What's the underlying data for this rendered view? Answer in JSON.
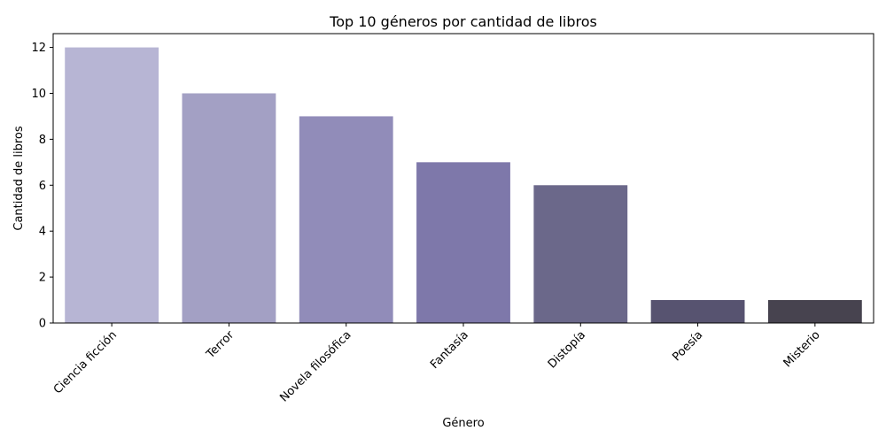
{
  "chart_data": {
    "type": "bar",
    "title": "Top 10 géneros por cantidad de libros",
    "xlabel": "Género",
    "ylabel": "Cantidad de libros",
    "categories": [
      "Ciencia ficción",
      "Terror",
      "Novela filosófica",
      "Fantasía",
      "Distopía",
      "Poesía",
      "Misterio"
    ],
    "values": [
      12,
      10,
      9,
      7,
      6,
      1,
      1
    ],
    "colors": [
      "#b7b5d4",
      "#a3a0c4",
      "#918cb9",
      "#7e78aa",
      "#6b688a",
      "#575370",
      "#47434f"
    ],
    "ylim": [
      0,
      12.6
    ],
    "yticks": [
      0,
      2,
      4,
      6,
      8,
      10,
      12
    ],
    "grid": false,
    "legend": "none"
  }
}
